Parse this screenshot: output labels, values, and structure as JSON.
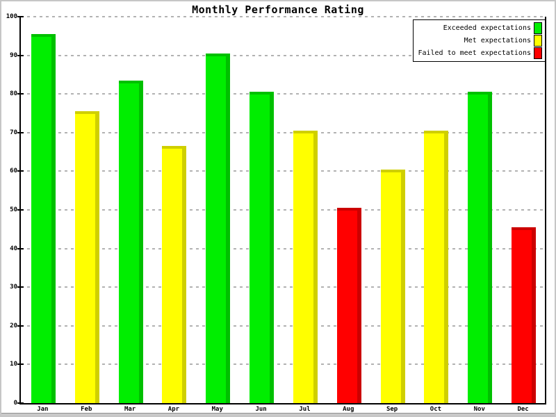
{
  "title": "Monthly Performance Rating",
  "chart_data": {
    "type": "bar",
    "title": "Monthly Performance Rating",
    "categories": [
      "Jan",
      "Feb",
      "Mar",
      "Apr",
      "May",
      "Jun",
      "Jul",
      "Aug",
      "Sep",
      "Oct",
      "Nov",
      "Dec"
    ],
    "values": [
      95.5,
      75.5,
      83.5,
      66.5,
      90.5,
      80.5,
      70.5,
      50.5,
      60.5,
      70.5,
      80.5,
      45.5
    ],
    "statuses": [
      "exceeded",
      "met",
      "exceeded",
      "met",
      "exceeded",
      "exceeded",
      "met",
      "failed",
      "met",
      "met",
      "exceeded",
      "failed"
    ],
    "xlabel": "",
    "ylabel": "",
    "ylim": [
      0,
      100
    ],
    "yticks": [
      0,
      10,
      20,
      30,
      40,
      50,
      60,
      70,
      80,
      90,
      100
    ],
    "grid": "horizontal-dashed",
    "legend_position": "top-right"
  },
  "legend": {
    "items": [
      {
        "label": "Exceeded expectations",
        "status": "exceeded"
      },
      {
        "label": "Met expectations",
        "status": "met"
      },
      {
        "label": "Failed to meet expectations",
        "status": "failed"
      }
    ]
  },
  "colors": {
    "exceeded": {
      "main": "#00ee00",
      "dark": "#00c000"
    },
    "met": {
      "main": "#ffff00",
      "dark": "#cfcf00"
    },
    "failed": {
      "main": "#ff0000",
      "dark": "#cc0000"
    },
    "grid": "#b2b2b2",
    "axis": "#000000",
    "frame": "#c6c6c6"
  }
}
